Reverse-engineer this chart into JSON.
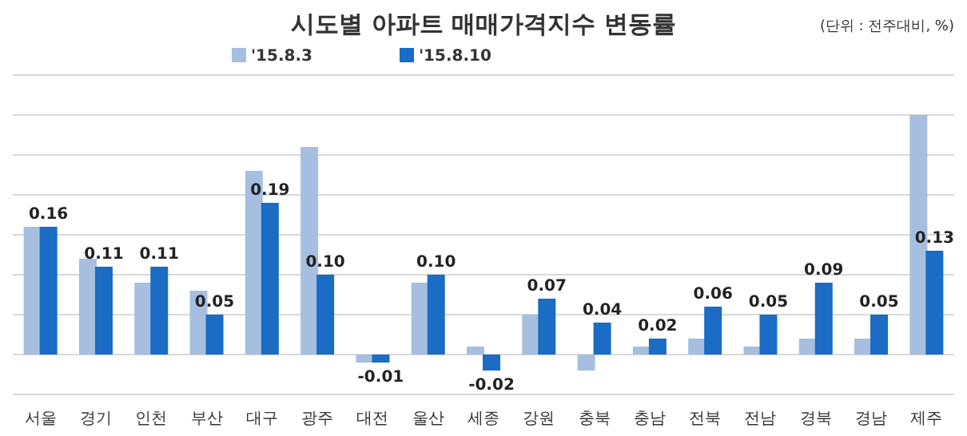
{
  "chart_data": {
    "type": "bar",
    "title": "시도별 아파트 매매가격지수 변동률",
    "annotations": [
      "(단위 : 전주대비, %)"
    ],
    "categories": [
      "서울",
      "경기",
      "인천",
      "부산",
      "대구",
      "광주",
      "대전",
      "울산",
      "세종",
      "강원",
      "충북",
      "충남",
      "전북",
      "전남",
      "경북",
      "경남",
      "제주"
    ],
    "series": [
      {
        "name": "'15.8.3",
        "color": "#a6bfe0",
        "values": [
          0.16,
          0.12,
          0.09,
          0.08,
          0.23,
          0.26,
          -0.01,
          0.09,
          0.01,
          0.05,
          -0.02,
          0.01,
          0.02,
          0.01,
          0.02,
          0.02,
          0.3
        ]
      },
      {
        "name": "'15.8.10",
        "color": "#1a6cc4",
        "values": [
          0.16,
          0.11,
          0.11,
          0.05,
          0.19,
          0.1,
          -0.01,
          0.1,
          -0.02,
          0.07,
          0.04,
          0.02,
          0.06,
          0.05,
          0.09,
          0.05,
          0.13
        ],
        "value_labels": [
          "0.16",
          "0.11",
          "0.11",
          "0.05",
          "0.19",
          "0.10",
          "-0.01",
          "0.10",
          "-0.02",
          "0.07",
          "0.04",
          "0.02",
          "0.06",
          "0.05",
          "0.09",
          "0.05",
          "0.13"
        ]
      }
    ],
    "ylim": [
      -0.05,
      0.35
    ],
    "yticks": [
      {
        "value": -0.05,
        "label": null
      },
      {
        "value": 0,
        "label": null
      },
      {
        "value": 0.05,
        "label": null
      },
      {
        "value": 0.1,
        "label": null
      },
      {
        "value": 0.15,
        "label": null
      },
      {
        "value": 0.2,
        "label": null
      },
      {
        "value": 0.25,
        "label": null
      },
      {
        "value": 0.3,
        "label": null
      },
      {
        "value": 0.35,
        "label": null
      }
    ],
    "grid": "y",
    "legend": "top left",
    "tick_labels": "x"
  }
}
